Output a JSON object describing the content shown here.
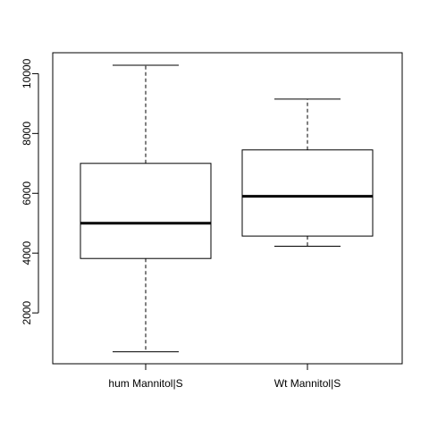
{
  "chart_data": {
    "type": "boxplot",
    "title": "",
    "xlabel": "",
    "ylabel": "",
    "ylim": [
      300,
      10700
    ],
    "yticks": [
      2000,
      4000,
      6000,
      8000,
      10000
    ],
    "ytick_labels": [
      "2000",
      "4000",
      "6000",
      "8000",
      "10000"
    ],
    "grid": false,
    "categories": [
      "hum Mannitol|S",
      "Wt Mannitol|S"
    ],
    "boxes": [
      {
        "category": "hum Mannitol|S",
        "whisker_low": 700,
        "q1": 3820,
        "median": 5000,
        "q3": 7000,
        "whisker_high": 10280
      },
      {
        "category": "Wt Mannitol|S",
        "whisker_low": 4230,
        "q1": 4570,
        "median": 5900,
        "q3": 7450,
        "whisker_high": 9150
      }
    ]
  }
}
